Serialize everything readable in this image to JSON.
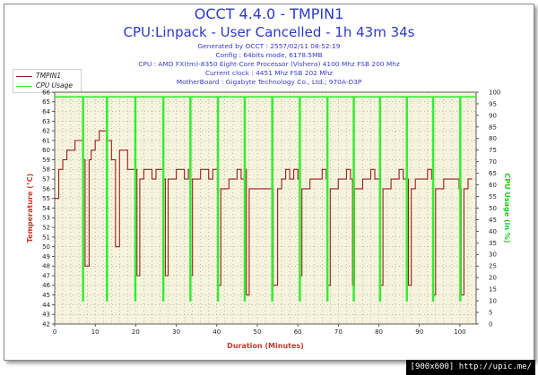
{
  "title_line1": "OCCT 4.4.0 - TMPIN1",
  "title_line2": "CPU:Linpack - User Cancelled - 1h 43m 34s",
  "info_lines": [
    "Generated by OCCT : 2557/02/11 08:52:19",
    "Config : 64bits mode, 6178.5MB",
    "CPU : AMD FX(tm)-8350 Eight-Core Processor (Vishera) 4100 Mhz FSB 200 Mhz",
    "Current clock : 4451 Mhz FSB 202 Mhz",
    "MotherBoard : Gigabyte Technology Co., Ltd.; 970A-D3P"
  ],
  "footer_text": "[900x600] http://upic.me/",
  "colors": {
    "title": "#2a39c9",
    "plot_bg": "#f6f3dc",
    "temp_series": "#9b1b1b",
    "cpu_series": "#33ee33",
    "left_axis": "#c0392b",
    "right_axis": "#22cc22",
    "grid": "#888888"
  },
  "chart_data": {
    "type": "line",
    "xlabel": "Duration (Minutes)",
    "ylabel_left": "Temperature (°C)",
    "ylabel_right": "CPU Usage (in %)",
    "xlim": [
      0,
      104
    ],
    "ylim_left": [
      42,
      66
    ],
    "ylim_right": [
      0,
      100
    ],
    "x_ticks": [
      0,
      10,
      20,
      30,
      40,
      50,
      60,
      70,
      80,
      90,
      100
    ],
    "y_ticks_left": [
      42,
      43,
      44,
      45,
      46,
      47,
      48,
      49,
      50,
      51,
      52,
      53,
      54,
      55,
      56,
      57,
      58,
      59,
      60,
      61,
      62,
      63,
      64,
      65,
      66
    ],
    "y_ticks_right": [
      0,
      5,
      10,
      15,
      20,
      25,
      30,
      35,
      40,
      45,
      50,
      55,
      60,
      65,
      70,
      75,
      80,
      85,
      90,
      95,
      100
    ],
    "grid": true,
    "legend": [
      "TMPIN1",
      "CPU Usage"
    ],
    "series": [
      {
        "name": "TMPIN1",
        "axis": "left",
        "x": [
          0,
          1,
          2,
          3,
          4,
          5,
          6,
          7,
          7.5,
          8.5,
          9,
          10,
          11,
          12,
          13,
          14,
          15,
          16,
          18,
          19.8,
          20.3,
          21,
          22,
          23,
          24,
          25,
          26,
          26.8,
          27.3,
          28,
          29,
          30,
          31,
          32,
          33,
          33.5,
          34,
          35,
          36,
          37,
          38,
          39,
          40,
          40.3,
          41,
          42,
          43,
          44,
          45,
          46,
          46.8,
          47.3,
          48,
          50,
          52,
          53.4,
          53.9,
          55,
          56,
          57,
          58,
          59,
          60,
          60.5,
          61,
          62,
          63,
          64,
          66,
          67,
          67.3,
          68,
          69,
          70,
          71,
          72,
          73,
          73.5,
          74,
          75,
          76,
          77,
          78,
          79,
          80,
          80.3,
          81,
          82,
          83,
          84,
          85,
          86,
          86.8,
          87.3,
          88,
          89,
          90,
          91,
          92,
          93,
          93.4,
          94,
          95,
          96,
          97,
          98,
          99,
          99.8,
          100.3,
          101,
          102,
          103
        ],
        "values": [
          55,
          58,
          59,
          60,
          60,
          61,
          61,
          59,
          48,
          59,
          60,
          61,
          62,
          62,
          61,
          59,
          50,
          60,
          58,
          58,
          47,
          57,
          58,
          58,
          57,
          58,
          58,
          57,
          47,
          57,
          57,
          58,
          58,
          57,
          58,
          47,
          57,
          57,
          58,
          58,
          57,
          58,
          58,
          46,
          56,
          56,
          57,
          57,
          58,
          57,
          58,
          45,
          56,
          56,
          56,
          56,
          46,
          56,
          57,
          58,
          57,
          58,
          57,
          47,
          56,
          56,
          57,
          57,
          58,
          57,
          46,
          56,
          56,
          57,
          57,
          58,
          57,
          46,
          56,
          56,
          57,
          57,
          58,
          57,
          57,
          46,
          56,
          56,
          57,
          57,
          58,
          57,
          57,
          46,
          56,
          57,
          57,
          57,
          58,
          57,
          45,
          56,
          56,
          57,
          57,
          57,
          57,
          56,
          45,
          56,
          57,
          57
        ]
      },
      {
        "name": "CPU Usage",
        "axis": "right",
        "x": [
          0,
          6.7,
          6.9,
          7.1,
          12.6,
          12.8,
          13.0,
          19.6,
          19.8,
          20.0,
          26.5,
          26.7,
          26.9,
          33.2,
          33.4,
          33.6,
          40.0,
          40.2,
          40.4,
          46.6,
          46.8,
          47.0,
          53.4,
          53.6,
          53.8,
          60.2,
          60.4,
          60.6,
          67.0,
          67.2,
          67.4,
          73.5,
          73.7,
          73.9,
          80.0,
          80.2,
          80.4,
          86.6,
          86.8,
          87.0,
          93.1,
          93.3,
          93.5,
          99.8,
          100.0,
          100.2,
          104
        ],
        "values": [
          98,
          98,
          10,
          98,
          98,
          10,
          98,
          98,
          10,
          98,
          98,
          10,
          98,
          98,
          10,
          98,
          98,
          10,
          98,
          98,
          10,
          98,
          98,
          10,
          98,
          98,
          10,
          98,
          98,
          10,
          98,
          98,
          10,
          98,
          98,
          10,
          98,
          98,
          10,
          98,
          98,
          10,
          98,
          98,
          10,
          98,
          98
        ]
      }
    ]
  }
}
